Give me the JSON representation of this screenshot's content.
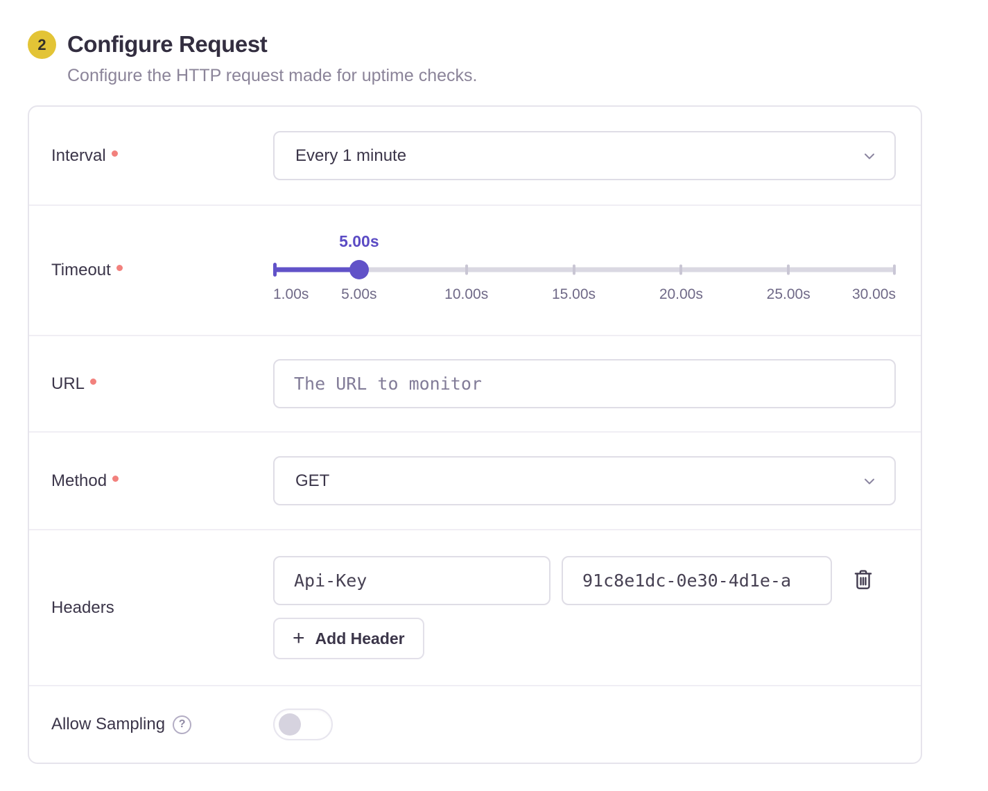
{
  "header": {
    "step_number": "2",
    "title": "Configure Request",
    "subtitle": "Configure the HTTP request made for uptime checks."
  },
  "form": {
    "interval": {
      "label": "Interval",
      "required": true,
      "value": "Every 1 minute"
    },
    "timeout": {
      "label": "Timeout",
      "required": true,
      "value": 5,
      "value_label": "5.00s",
      "min": 1,
      "max": 30,
      "tick_labels": [
        {
          "label": "1.00s",
          "value": 1
        },
        {
          "label": "5.00s",
          "value": 5
        },
        {
          "label": "10.00s",
          "value": 10
        },
        {
          "label": "15.00s",
          "value": 15
        },
        {
          "label": "20.00s",
          "value": 20
        },
        {
          "label": "25.00s",
          "value": 25
        },
        {
          "label": "30.00s",
          "value": 30
        }
      ],
      "track_marks": [
        10,
        15,
        20,
        25
      ]
    },
    "url": {
      "label": "URL",
      "required": true,
      "value": "",
      "placeholder": "The URL to monitor"
    },
    "method": {
      "label": "Method",
      "required": true,
      "value": "GET"
    },
    "headers": {
      "label": "Headers",
      "rows": [
        {
          "key": "Api-Key",
          "value": "91c8e1dc-0e30-4d1e-a"
        }
      ],
      "add_button_label": "Add Header",
      "plus_glyph": "+"
    },
    "allow_sampling": {
      "label": "Allow Sampling",
      "enabled": false,
      "help_glyph": "?"
    }
  },
  "colors": {
    "accent_purple": "#6152c8",
    "badge_yellow": "#e3c436",
    "required_dot": "#f2817d",
    "track_gray": "#dad8e2"
  }
}
